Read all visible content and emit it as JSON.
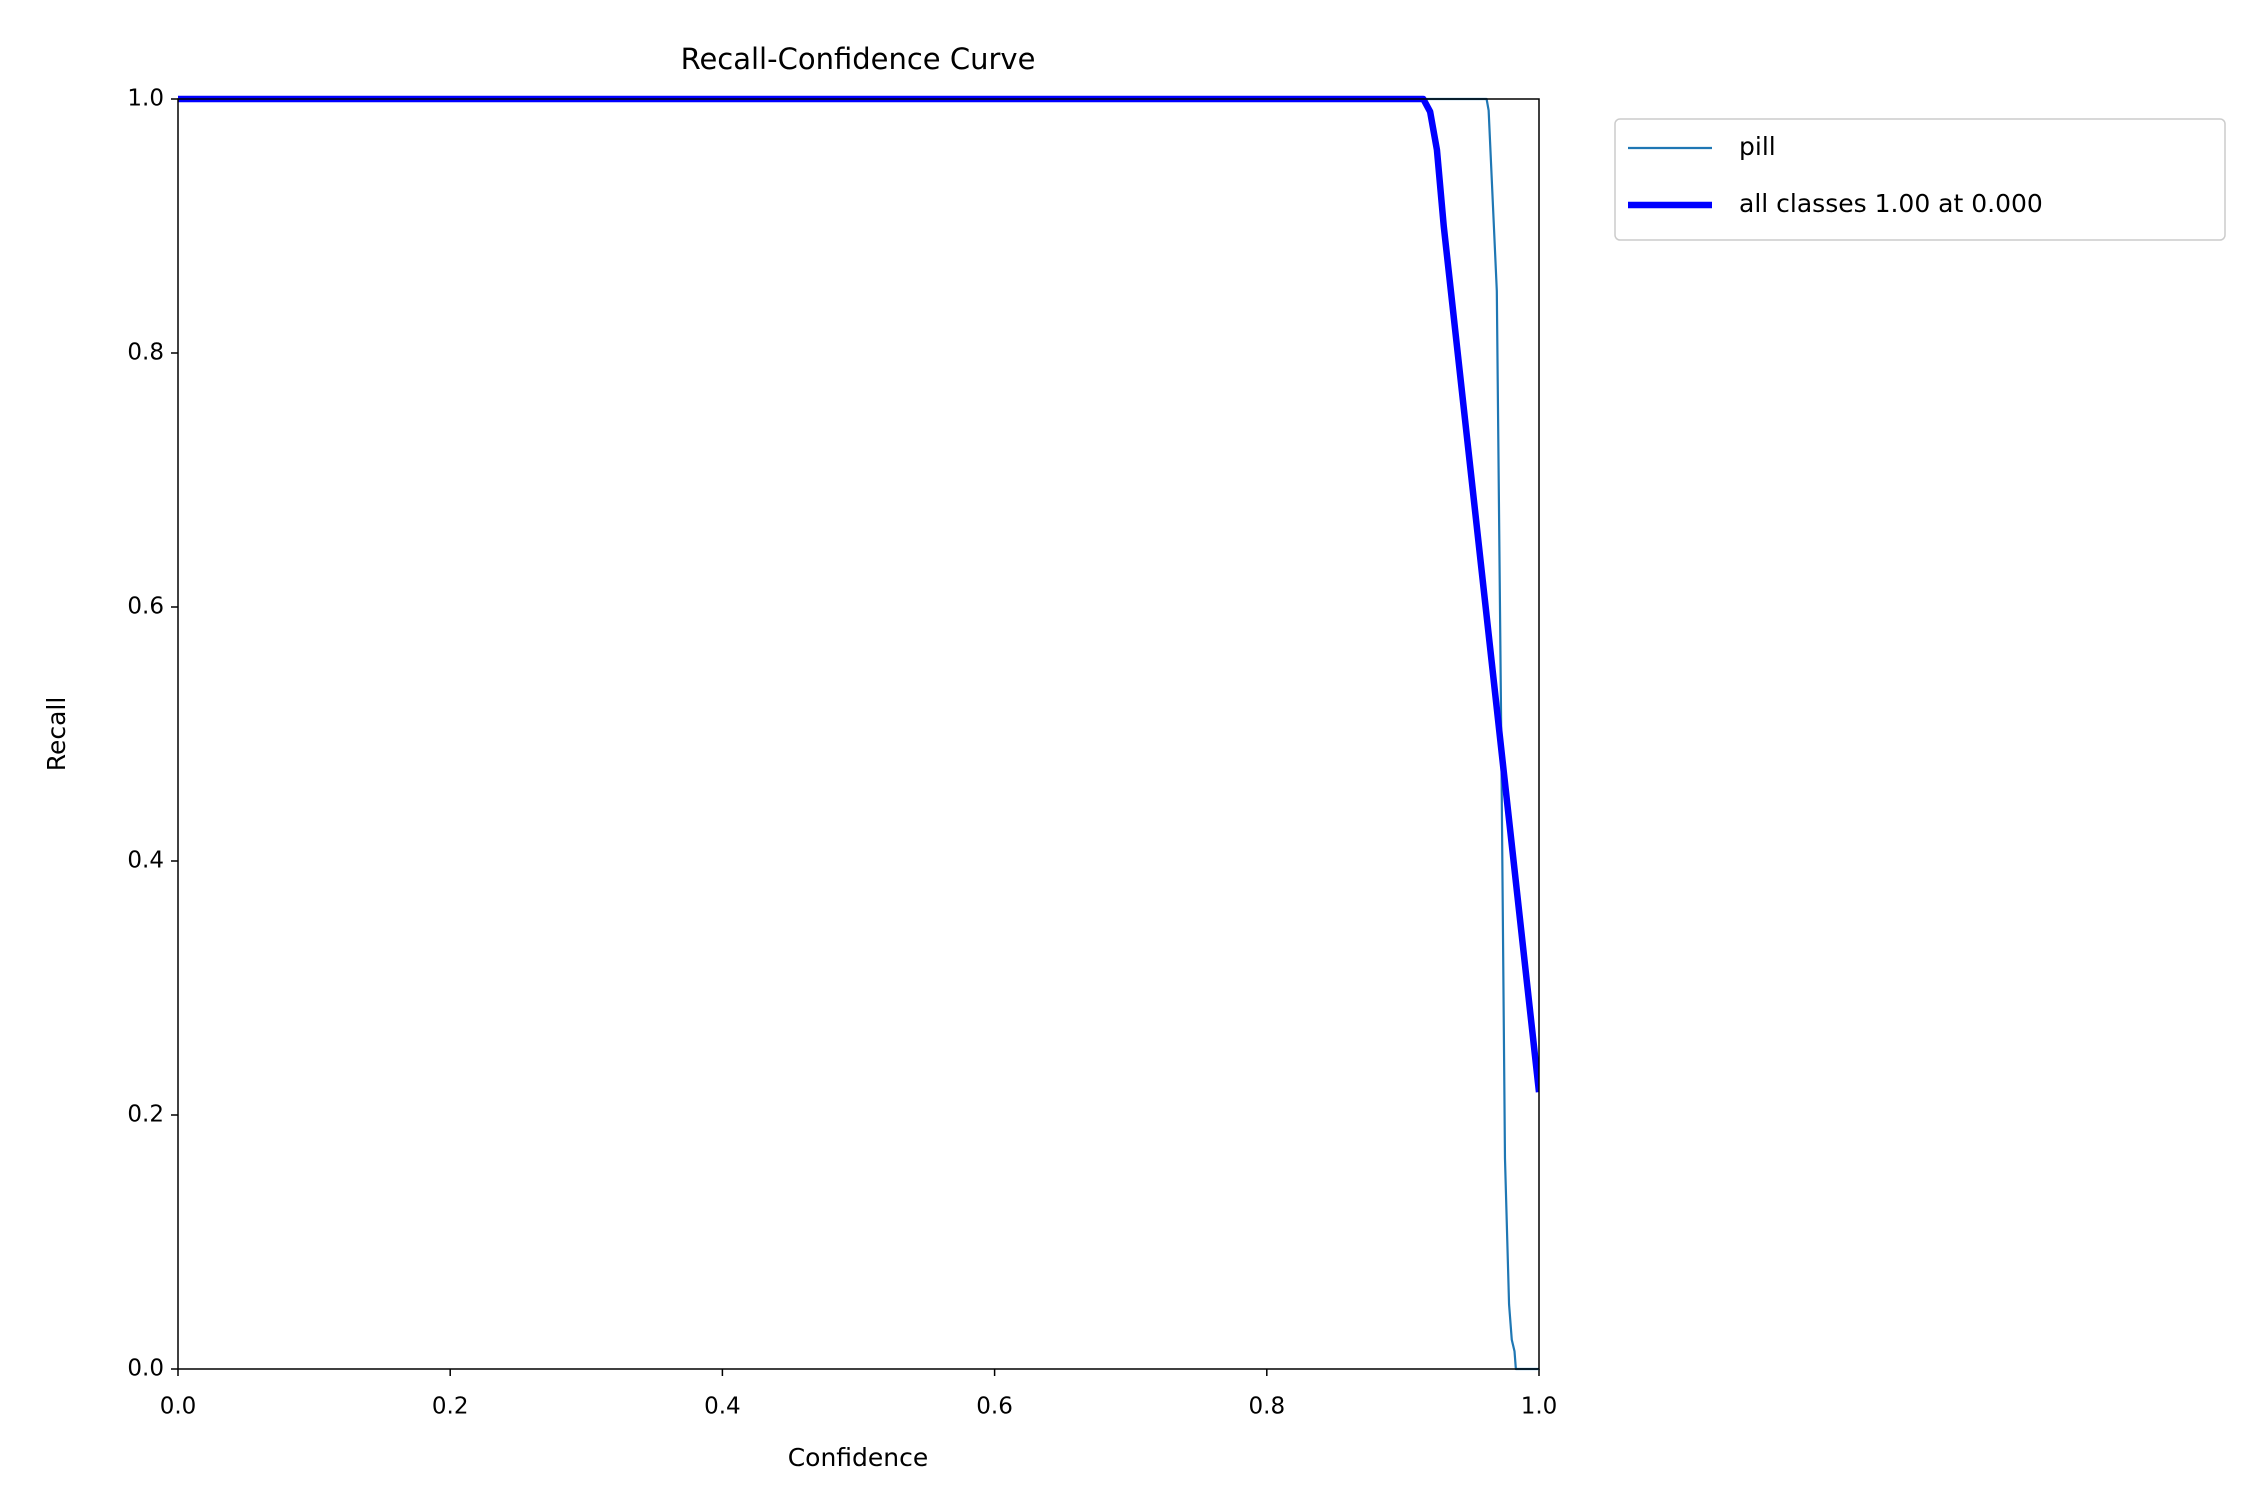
{
  "chart_data": {
    "type": "line",
    "title": "Recall-Confidence Curve",
    "x_label": "Confidence",
    "y_label": "Recall",
    "xlim": [
      0,
      1
    ],
    "ylim": [
      0,
      1
    ],
    "xticks": [
      {
        "value": 0,
        "label": "0.0"
      },
      0.2,
      0.4,
      0.6,
      0.8,
      {
        "value": 1,
        "label": "1.0"
      }
    ],
    "yticks": [
      {
        "value": 0,
        "label": "0.0"
      },
      0.2,
      0.4,
      0.6,
      0.8,
      {
        "value": 1,
        "label": "1.0"
      }
    ],
    "legend_position": "outside-upper-right",
    "series": [
      {
        "name": "pill",
        "color": "#1f77b4",
        "x": [
          0,
          0.9615,
          0.963,
          0.969,
          0.972,
          0.975,
          0.978,
          0.98,
          0.982,
          0.983,
          1.0
        ],
        "values": [
          1,
          1,
          0.991,
          0.849,
          0.528,
          0.166,
          0.051,
          0.023,
          0.014,
          0,
          0
        ]
      },
      {
        "name": "all classes 1.00 at 0.000",
        "color": "#0000ff",
        "x": [
          0,
          0.915,
          0.92,
          0.925,
          0.93,
          1.0
        ],
        "values": [
          1,
          1,
          0.99,
          0.96,
          0.9,
          0.218
        ]
      }
    ]
  }
}
